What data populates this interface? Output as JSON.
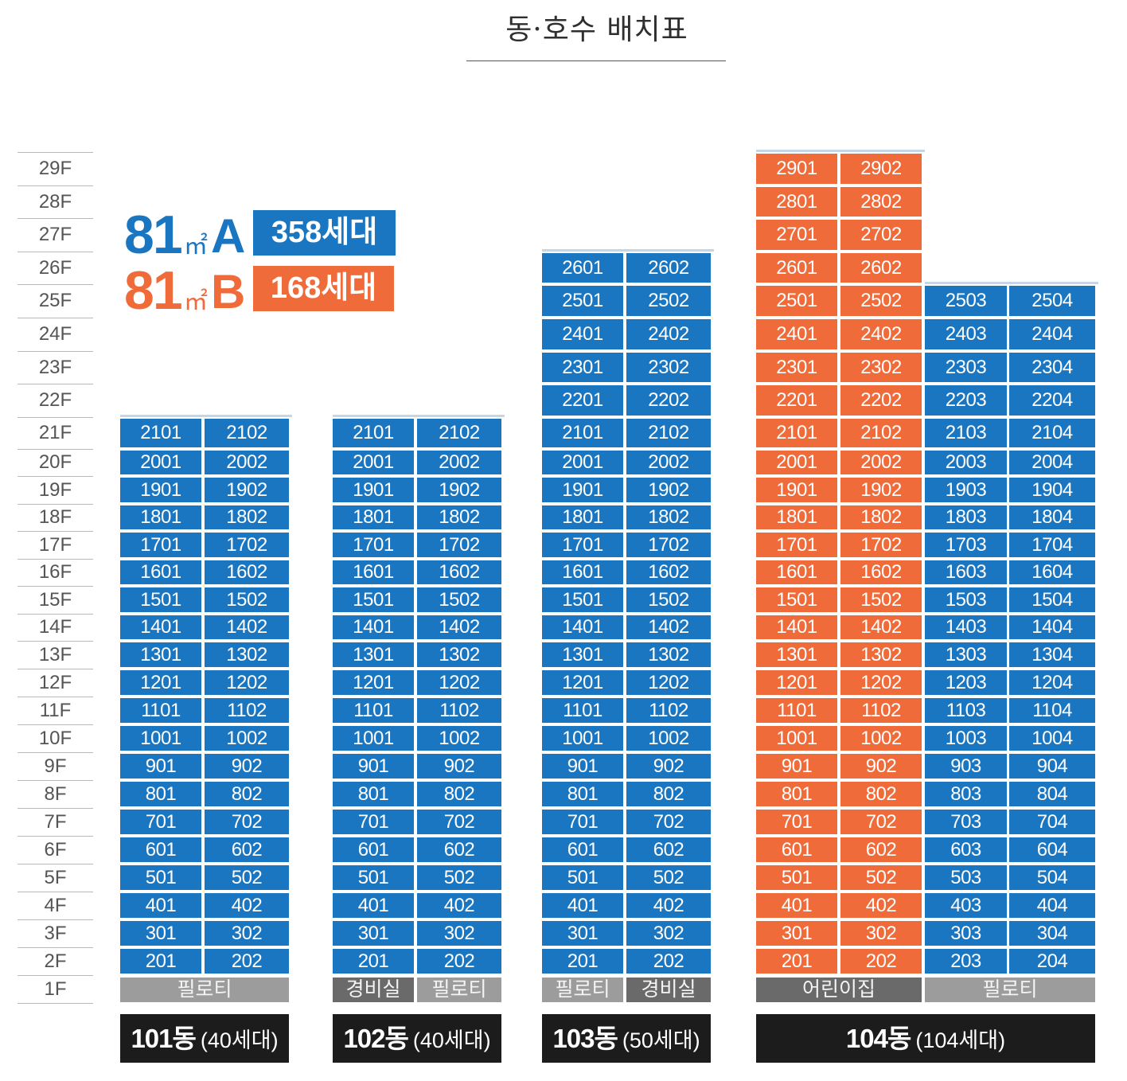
{
  "title": "동·호수 배치표",
  "colors": {
    "type_a": "#1b76c2",
    "type_b": "#f06b3a",
    "ground_gray": "#9c9c9c",
    "ground_dark": "#6a6a6a",
    "name_bg": "#1c1c1c",
    "cap_line": "#c7d6e6"
  },
  "floors": [
    "1F",
    "2F",
    "3F",
    "4F",
    "5F",
    "6F",
    "7F",
    "8F",
    "9F",
    "10F",
    "11F",
    "12F",
    "13F",
    "14F",
    "15F",
    "16F",
    "17F",
    "18F",
    "19F",
    "20F",
    "21F",
    "22F",
    "23F",
    "24F",
    "25F",
    "26F",
    "27F",
    "28F",
    "29F"
  ],
  "legend": {
    "a": {
      "area": "81",
      "unit": "㎡",
      "type": "A",
      "count": "358세대"
    },
    "b": {
      "area": "81",
      "unit": "㎡",
      "type": "B",
      "count": "168세대"
    }
  },
  "buildings": [
    {
      "id": "101동",
      "households": "(40세대)",
      "columns": [
        {
          "suffix": "01",
          "type": "a",
          "top_floor": 21
        },
        {
          "suffix": "02",
          "type": "a",
          "top_floor": 21
        }
      ],
      "ground": [
        {
          "label": "필로티",
          "span": 2,
          "tone": "gray"
        }
      ]
    },
    {
      "id": "102동",
      "households": "(40세대)",
      "columns": [
        {
          "suffix": "01",
          "type": "a",
          "top_floor": 21
        },
        {
          "suffix": "02",
          "type": "a",
          "top_floor": 21
        }
      ],
      "ground": [
        {
          "label": "경비실",
          "span": 1,
          "tone": "dark"
        },
        {
          "label": "필로티",
          "span": 1,
          "tone": "gray"
        }
      ]
    },
    {
      "id": "103동",
      "households": "(50세대)",
      "columns": [
        {
          "suffix": "01",
          "type": "a",
          "top_floor": 26
        },
        {
          "suffix": "02",
          "type": "a",
          "top_floor": 26
        }
      ],
      "ground": [
        {
          "label": "필로티",
          "span": 1,
          "tone": "gray"
        },
        {
          "label": "경비실",
          "span": 1,
          "tone": "dark"
        }
      ]
    },
    {
      "id": "104동",
      "households": "(104세대)",
      "columns": [
        {
          "suffix": "01",
          "type": "b",
          "top_floor": 29
        },
        {
          "suffix": "02",
          "type": "b",
          "top_floor": 29
        },
        {
          "suffix": "03",
          "type": "a",
          "top_floor": 25
        },
        {
          "suffix": "04",
          "type": "a",
          "top_floor": 25
        }
      ],
      "ground": [
        {
          "label": "어린이집",
          "span": 2,
          "tone": "dark"
        },
        {
          "label": "필로티",
          "span": 2,
          "tone": "gray"
        }
      ]
    }
  ]
}
